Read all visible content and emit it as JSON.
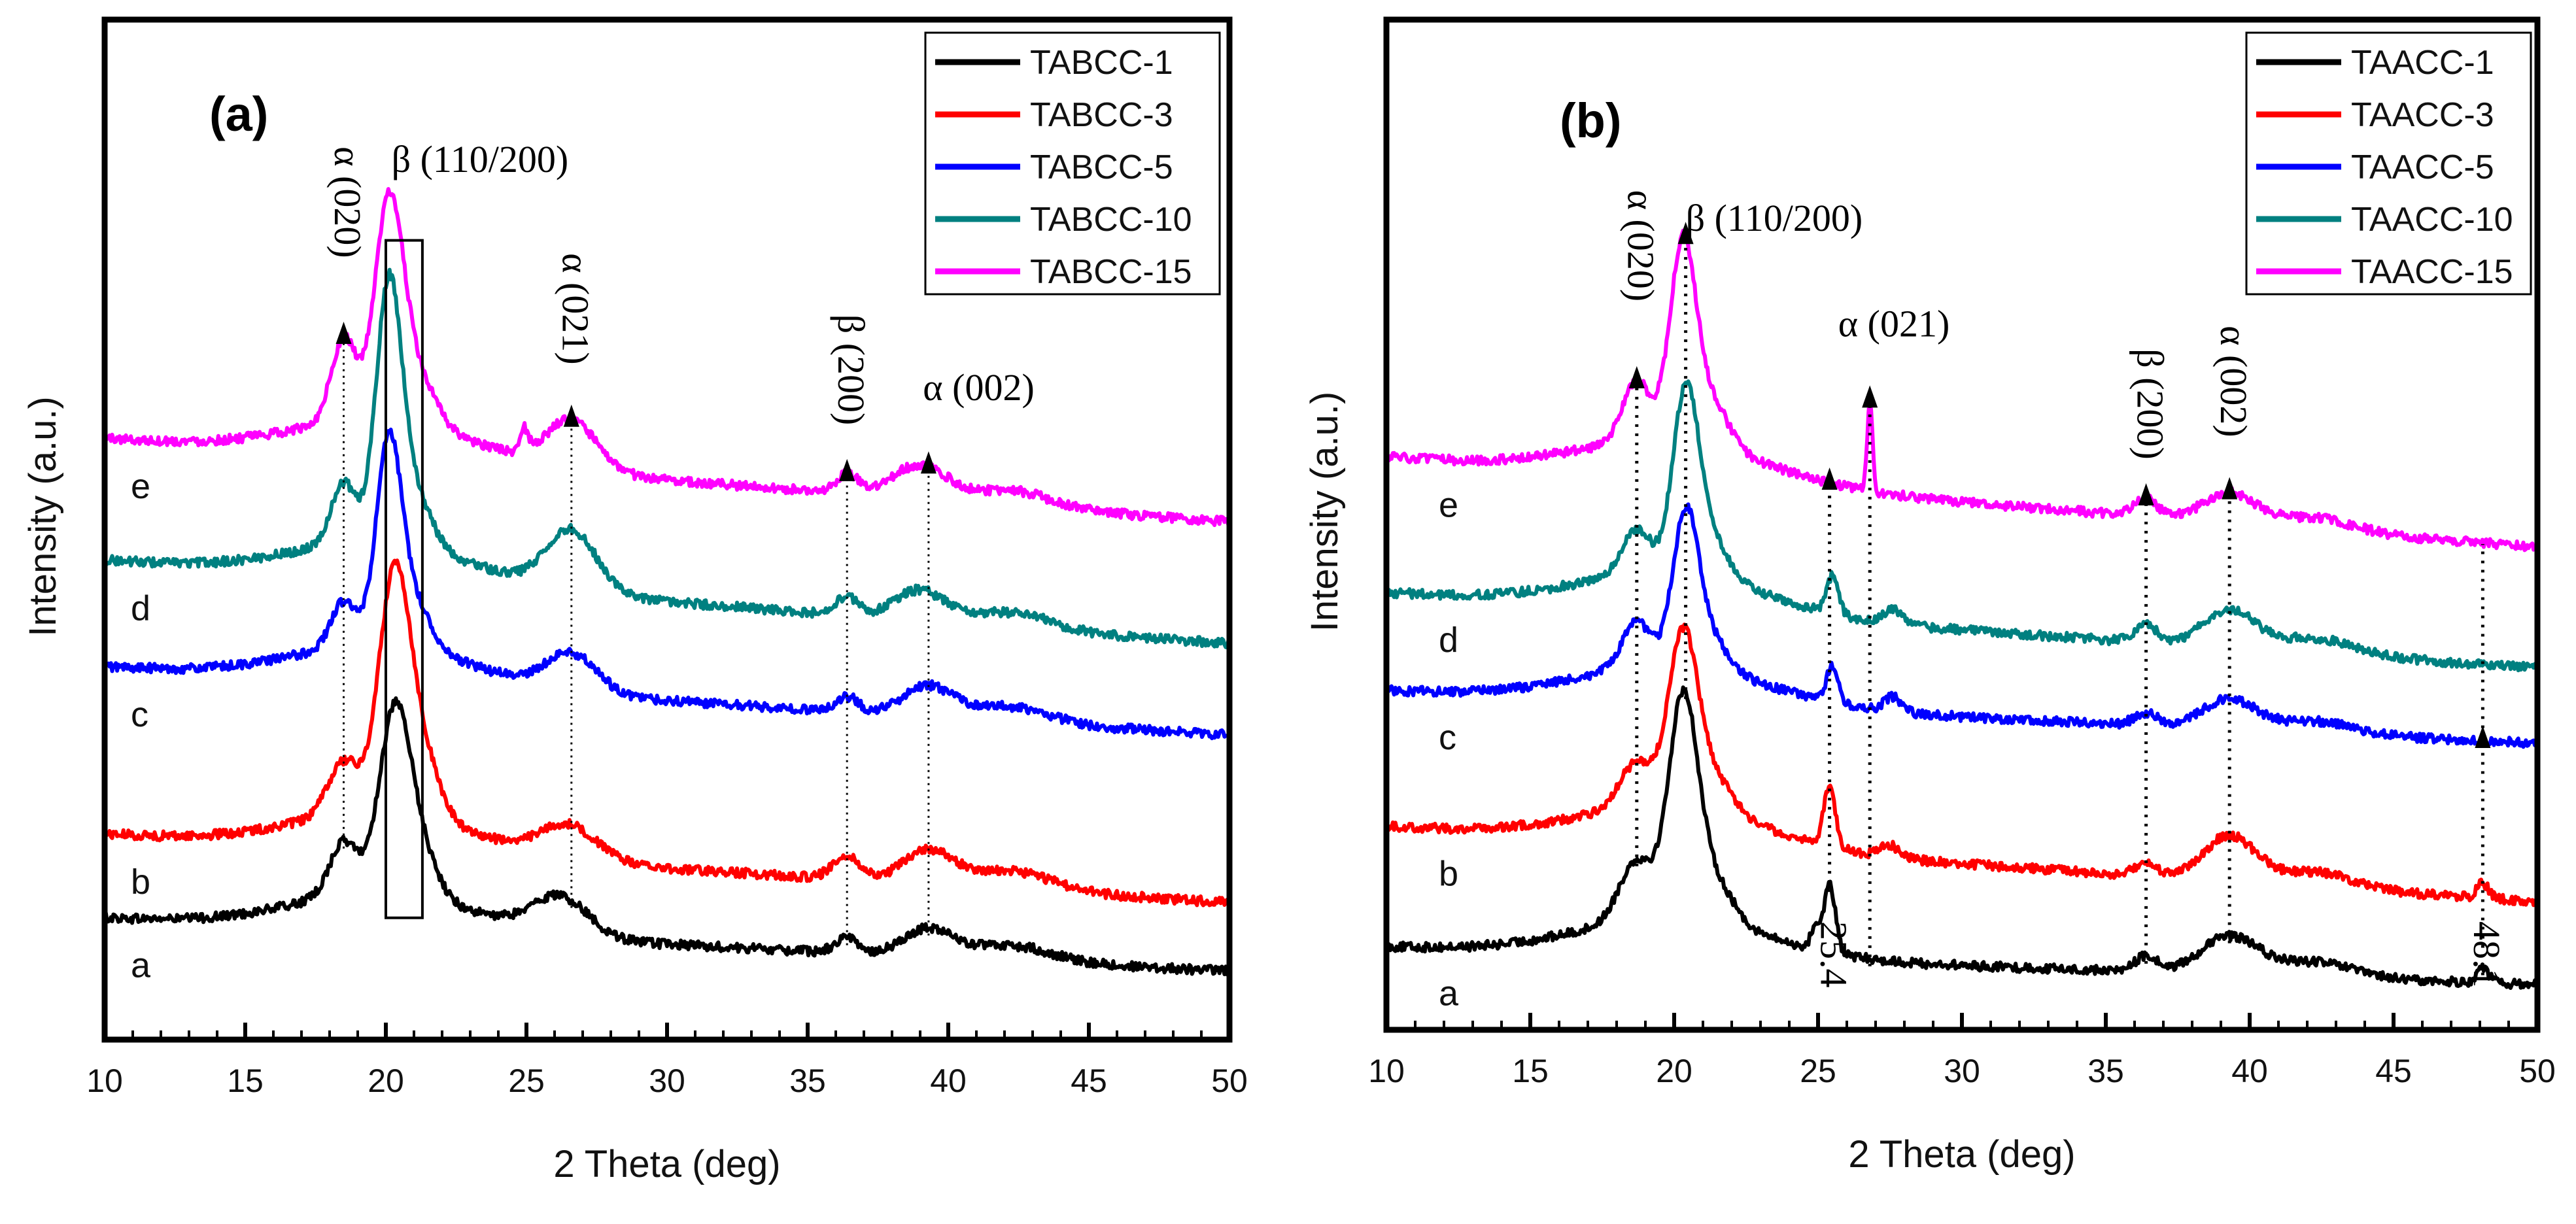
{
  "chart_data": [
    {
      "type": "line",
      "panel_label": "(a)",
      "xlabel": "2 Theta (deg)",
      "ylabel": "Intensity (a.u.)",
      "xlim": [
        10,
        50
      ],
      "ylim": [
        0,
        6.7
      ],
      "x_ticks": [
        "10",
        "15",
        "20",
        "25",
        "30",
        "35",
        "40",
        "45",
        "50"
      ],
      "legend_position": "top-right",
      "series": [
        {
          "name": "TABCC-1",
          "color": "#000000",
          "tag": "a",
          "offset": 0.8,
          "peaks": [
            [
              18.5,
              0.35,
              0.5
            ],
            [
              20.3,
              1.15,
              0.55
            ],
            [
              21.2,
              0.3,
              0.6
            ],
            [
              26.2,
              0.25,
              1.0
            ],
            [
              36.4,
              0.1,
              0.4
            ],
            [
              39.3,
              0.18,
              0.9
            ],
            [
              42.3,
              0.1,
              1.4
            ]
          ],
          "baseline": [
            0.0,
            0.01,
            0.004
          ],
          "slope": -0.35,
          "noise": 0.03
        },
        {
          "name": "TABCC-3",
          "color": "#ff0000",
          "tag": "b",
          "offset": 1.35,
          "peaks": [
            [
              18.5,
              0.35,
              0.55
            ],
            [
              20.3,
              1.55,
              0.55
            ],
            [
              21.3,
              0.4,
              0.6
            ],
            [
              26.5,
              0.22,
              1.0
            ],
            [
              36.4,
              0.15,
              0.5
            ],
            [
              39.3,
              0.22,
              0.9
            ],
            [
              42.3,
              0.12,
              1.4
            ]
          ],
          "baseline": [
            0.0,
            0.01,
            0.004
          ],
          "slope": -0.45,
          "noise": 0.03
        },
        {
          "name": "TABCC-5",
          "color": "#0000ff",
          "tag": "c",
          "offset": 2.45,
          "peaks": [
            [
              18.5,
              0.3,
              0.45
            ],
            [
              20.1,
              1.3,
              0.45
            ],
            [
              21.0,
              0.3,
              0.6
            ],
            [
              26.6,
              0.25,
              0.9
            ],
            [
              36.4,
              0.1,
              0.4
            ],
            [
              39.3,
              0.2,
              0.9
            ],
            [
              42.3,
              0.1,
              1.3
            ]
          ],
          "baseline": [
            0.0,
            0.01,
            0.004
          ],
          "slope": -0.45,
          "noise": 0.03
        },
        {
          "name": "TABCC-10",
          "color": "#008080",
          "tag": "d",
          "offset": 3.15,
          "peaks": [
            [
              18.5,
              0.4,
              0.45
            ],
            [
              20.1,
              1.65,
              0.45
            ],
            [
              21.0,
              0.35,
              0.6
            ],
            [
              26.6,
              0.4,
              0.9
            ],
            [
              36.4,
              0.12,
              0.4
            ],
            [
              39.0,
              0.2,
              0.9
            ],
            [
              42.3,
              0.1,
              1.3
            ]
          ],
          "baseline": [
            0.0,
            0.01,
            0.004
          ],
          "slope": -0.55,
          "noise": 0.03
        },
        {
          "name": "TABCC-15",
          "color": "#ff00ff",
          "tag": "e",
          "offset": 3.95,
          "peaks": [
            [
              18.5,
              0.55,
              0.45
            ],
            [
              20.1,
              1.35,
              0.5
            ],
            [
              21.0,
              0.35,
              0.7
            ],
            [
              24.9,
              0.15,
              0.15
            ],
            [
              26.6,
              0.32,
              0.9
            ],
            [
              36.4,
              0.12,
              0.4
            ],
            [
              39.0,
              0.22,
              1.0
            ],
            [
              42.3,
              0.1,
              1.3
            ]
          ],
          "baseline": [
            0.0,
            0.01,
            0.004
          ],
          "slope": -0.55,
          "noise": 0.03
        }
      ],
      "curve_tags": [
        "a",
        "b",
        "c",
        "d",
        "e"
      ],
      "annotations": [
        {
          "text": "α (020)",
          "x": 18.5,
          "y": 5.5,
          "rotated": true
        },
        {
          "text": "β (110/200)",
          "x": 20.2,
          "y": 5.7
        },
        {
          "text": "α (021)",
          "x": 26.6,
          "y": 4.8,
          "rotated": true
        },
        {
          "text": "β (200)",
          "x": 36.4,
          "y": 4.4,
          "rotated": true
        },
        {
          "text": "α (002)",
          "x": 39.1,
          "y": 4.2
        }
      ],
      "dotted_lines_x": [
        18.5,
        26.6,
        36.4,
        39.3
      ],
      "arrows_x": [
        18.5,
        26.6,
        36.4,
        39.3
      ],
      "highlight_box_x": [
        20.0,
        21.3
      ]
    },
    {
      "type": "line",
      "panel_label": "(b)",
      "xlabel": "2 Theta (deg)",
      "ylabel": "Intensity (a.u.)",
      "xlim": [
        10,
        50
      ],
      "ylim": [
        0,
        6.7
      ],
      "x_ticks": [
        "10",
        "15",
        "20",
        "25",
        "30",
        "35",
        "40",
        "45",
        "50"
      ],
      "legend_position": "top-right",
      "series": [
        {
          "name": "TAACC-1",
          "color": "#000000",
          "tag": "a",
          "offset": 0.55,
          "peaks": [
            [
              18.7,
              0.4,
              0.6
            ],
            [
              20.3,
              1.4,
              0.5
            ],
            [
              21.3,
              0.3,
              0.7
            ],
            [
              24.9,
              0.15,
              0.15
            ],
            [
              25.4,
              0.45,
              0.2
            ],
            [
              36.4,
              0.1,
              0.4
            ],
            [
              39.3,
              0.25,
              1.0
            ],
            [
              42.3,
              0.1,
              1.3
            ],
            [
              48.1,
              0.1,
              0.2
            ]
          ],
          "baseline": [
            0.0,
            0.01,
            0.004
          ],
          "slope": -0.25,
          "noise": 0.03
        },
        {
          "name": "TAACC-3",
          "color": "#ff0000",
          "tag": "b",
          "offset": 1.35,
          "peaks": [
            [
              18.7,
              0.3,
              0.6
            ],
            [
              20.3,
              1.1,
              0.5
            ],
            [
              21.3,
              0.25,
              0.7
            ],
            [
              25.4,
              0.4,
              0.2
            ],
            [
              27.5,
              0.08,
              0.3
            ],
            [
              36.4,
              0.08,
              0.4
            ],
            [
              39.3,
              0.3,
              0.9
            ],
            [
              42.3,
              0.1,
              1.3
            ],
            [
              48.1,
              0.1,
              0.2
            ]
          ],
          "baseline": [
            0.0,
            0.01,
            0.004
          ],
          "slope": -0.5,
          "noise": 0.03
        },
        {
          "name": "TAACC-5",
          "color": "#0000ff",
          "tag": "c",
          "offset": 2.25,
          "peaks": [
            [
              18.7,
              0.3,
              0.5
            ],
            [
              20.4,
              1.0,
              0.45
            ],
            [
              21.3,
              0.2,
              0.6
            ],
            [
              25.5,
              0.25,
              0.2
            ],
            [
              27.6,
              0.1,
              0.3
            ],
            [
              36.4,
              0.08,
              0.4
            ],
            [
              39.3,
              0.2,
              0.9
            ],
            [
              42.3,
              0.08,
              1.3
            ]
          ],
          "baseline": [
            0.0,
            0.01,
            0.004
          ],
          "slope": -0.35,
          "noise": 0.03
        },
        {
          "name": "TAACC-10",
          "color": "#008080",
          "tag": "d",
          "offset": 2.9,
          "peaks": [
            [
              18.7,
              0.3,
              0.5
            ],
            [
              20.4,
              1.2,
              0.45
            ],
            [
              21.3,
              0.25,
              0.6
            ],
            [
              25.5,
              0.25,
              0.2
            ],
            [
              27.6,
              0.1,
              0.3
            ],
            [
              36.4,
              0.12,
              0.4
            ],
            [
              39.3,
              0.25,
              0.9
            ],
            [
              42.3,
              0.1,
              1.3
            ]
          ],
          "baseline": [
            0.0,
            0.01,
            0.004
          ],
          "slope": -0.5,
          "noise": 0.03
        },
        {
          "name": "TAACC-15",
          "color": "#ff00ff",
          "tag": "e",
          "offset": 3.8,
          "peaks": [
            [
              18.7,
              0.4,
              0.5
            ],
            [
              20.3,
              1.3,
              0.45
            ],
            [
              21.3,
              0.3,
              0.6
            ],
            [
              26.8,
              0.6,
              0.09
            ],
            [
              36.4,
              0.12,
              0.4
            ],
            [
              39.3,
              0.2,
              0.9
            ],
            [
              42.3,
              0.08,
              1.3
            ]
          ],
          "baseline": [
            0.0,
            0.01,
            0.004
          ],
          "slope": -0.6,
          "noise": 0.03
        }
      ],
      "curve_tags": [
        "a",
        "b",
        "c",
        "d",
        "e"
      ],
      "annotations": [
        {
          "text": "α (020)",
          "x": 18.7,
          "y": 5.2,
          "rotated": true
        },
        {
          "text": "β (110/200)",
          "x": 20.4,
          "y": 5.3
        },
        {
          "text": "α (021)",
          "x": 25.7,
          "y": 4.6
        },
        {
          "text": "β (200)",
          "x": 36.4,
          "y": 4.15,
          "rotated": true
        },
        {
          "text": "α (002)",
          "x": 39.3,
          "y": 4.3,
          "rotated": true
        },
        {
          "text": "25.4",
          "x": 25.4,
          "y": 0.5,
          "rotated": true
        },
        {
          "text": "48.1",
          "x": 48.1,
          "y": 0.5,
          "rotated": true
        }
      ],
      "dotted_lines_x": [
        18.7,
        20.4,
        25.4,
        26.8,
        36.4,
        39.3,
        48.1
      ],
      "arrows_x": [
        18.7,
        20.4,
        25.4,
        26.8,
        36.4,
        39.3,
        48.1
      ]
    }
  ]
}
